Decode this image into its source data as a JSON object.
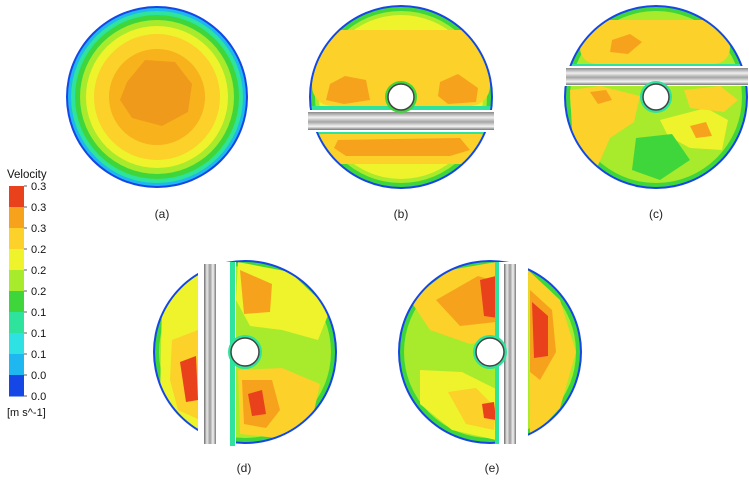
{
  "legend": {
    "title": "Velocity",
    "unit": "[m s^-1]",
    "ticks": [
      "0.3",
      "0.3",
      "0.3",
      "0.2",
      "0.2",
      "0.2",
      "0.1",
      "0.1",
      "0.1",
      "0.0",
      "0.0"
    ],
    "colors": [
      "#e8411c",
      "#f7a21c",
      "#fbd12a",
      "#eef32c",
      "#a8ea2c",
      "#3fd63c",
      "#2ee39b",
      "#2ee2e4",
      "#1fb7ef",
      "#1546e6"
    ]
  },
  "panels": [
    {
      "label": "(a)"
    },
    {
      "label": "(b)"
    },
    {
      "label": "(c)"
    },
    {
      "label": "(d)"
    },
    {
      "label": "(e)"
    }
  ]
}
